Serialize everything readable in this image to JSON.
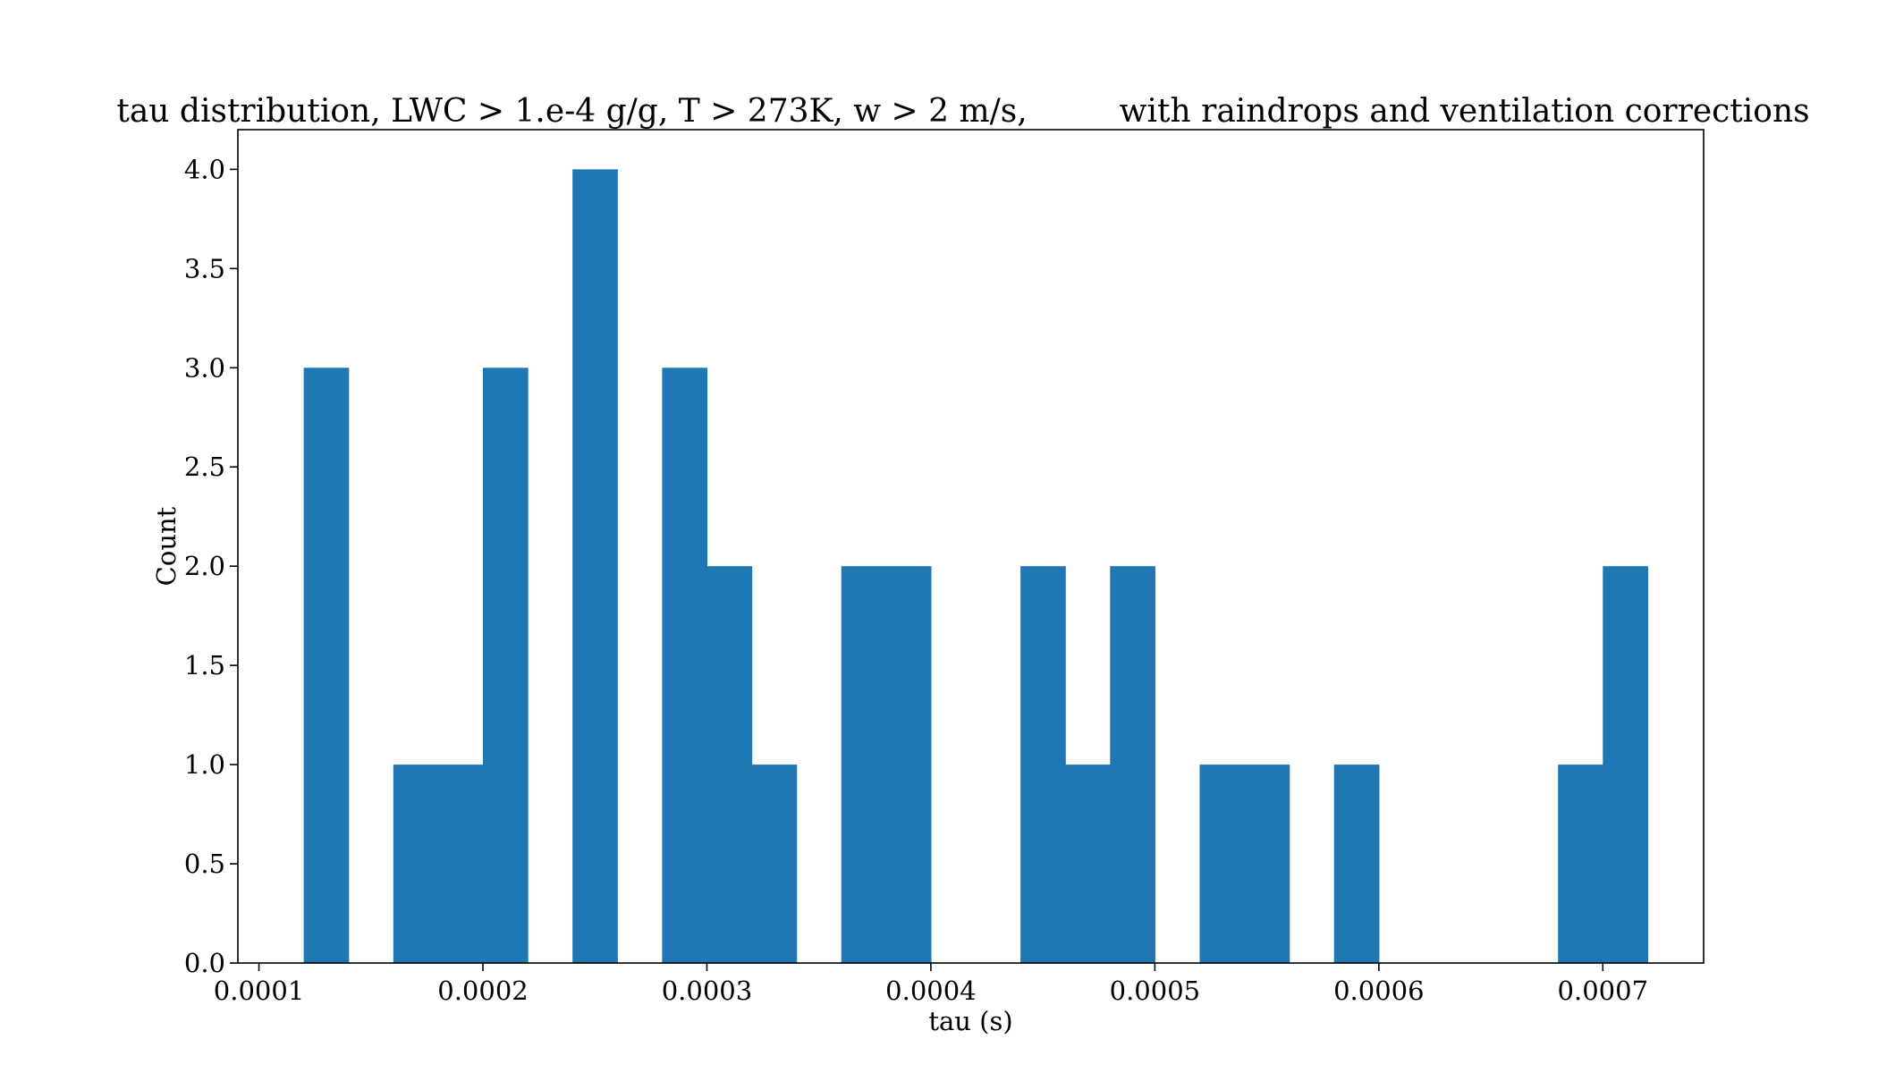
{
  "chart_data": {
    "type": "bar",
    "title": "tau distribution, LWC > 1.e-4 g/g, T > 273K, w > 2 m/s,         with raindrops and ventilation corrections",
    "xlabel": "tau (s)",
    "ylabel": "Count",
    "bin_width": 2e-05,
    "bins": [
      {
        "start": 0.00012,
        "count": 3
      },
      {
        "start": 0.00014,
        "count": 0
      },
      {
        "start": 0.00016,
        "count": 1
      },
      {
        "start": 0.00018,
        "count": 1
      },
      {
        "start": 0.0002,
        "count": 3
      },
      {
        "start": 0.00022,
        "count": 0
      },
      {
        "start": 0.00024,
        "count": 4
      },
      {
        "start": 0.00026,
        "count": 0
      },
      {
        "start": 0.00028,
        "count": 3
      },
      {
        "start": 0.0003,
        "count": 2
      },
      {
        "start": 0.00032,
        "count": 1
      },
      {
        "start": 0.00034,
        "count": 0
      },
      {
        "start": 0.00036,
        "count": 2
      },
      {
        "start": 0.00038,
        "count": 2
      },
      {
        "start": 0.0004,
        "count": 0
      },
      {
        "start": 0.00042,
        "count": 0
      },
      {
        "start": 0.00044,
        "count": 2
      },
      {
        "start": 0.00046,
        "count": 1
      },
      {
        "start": 0.00048,
        "count": 2
      },
      {
        "start": 0.0005,
        "count": 0
      },
      {
        "start": 0.00052,
        "count": 1
      },
      {
        "start": 0.00054,
        "count": 1
      },
      {
        "start": 0.00056,
        "count": 0
      },
      {
        "start": 0.00058,
        "count": 1
      },
      {
        "start": 0.0006,
        "count": 0
      },
      {
        "start": 0.00062,
        "count": 0
      },
      {
        "start": 0.00064,
        "count": 0
      },
      {
        "start": 0.00066,
        "count": 0
      },
      {
        "start": 0.00068,
        "count": 1
      },
      {
        "start": 0.0007,
        "count": 2
      }
    ],
    "xlim": [
      9.06e-05,
      0.000745
    ],
    "ylim": [
      0,
      4.2
    ],
    "xticks": [
      {
        "value": 0.0001,
        "label": "0.0001"
      },
      {
        "value": 0.0002,
        "label": "0.0002"
      },
      {
        "value": 0.0003,
        "label": "0.0003"
      },
      {
        "value": 0.0004,
        "label": "0.0004"
      },
      {
        "value": 0.0005,
        "label": "0.0005"
      },
      {
        "value": 0.0006,
        "label": "0.0006"
      },
      {
        "value": 0.0007,
        "label": "0.0007"
      }
    ],
    "yticks": [
      {
        "value": 0.0,
        "label": "0.0"
      },
      {
        "value": 0.5,
        "label": "0.5"
      },
      {
        "value": 1.0,
        "label": "1.0"
      },
      {
        "value": 1.5,
        "label": "1.5"
      },
      {
        "value": 2.0,
        "label": "2.0"
      },
      {
        "value": 2.5,
        "label": "2.5"
      },
      {
        "value": 3.0,
        "label": "3.0"
      },
      {
        "value": 3.5,
        "label": "3.5"
      },
      {
        "value": 4.0,
        "label": "4.0"
      }
    ],
    "bar_color": "#1f77b4",
    "grid": false,
    "legend": "none"
  }
}
